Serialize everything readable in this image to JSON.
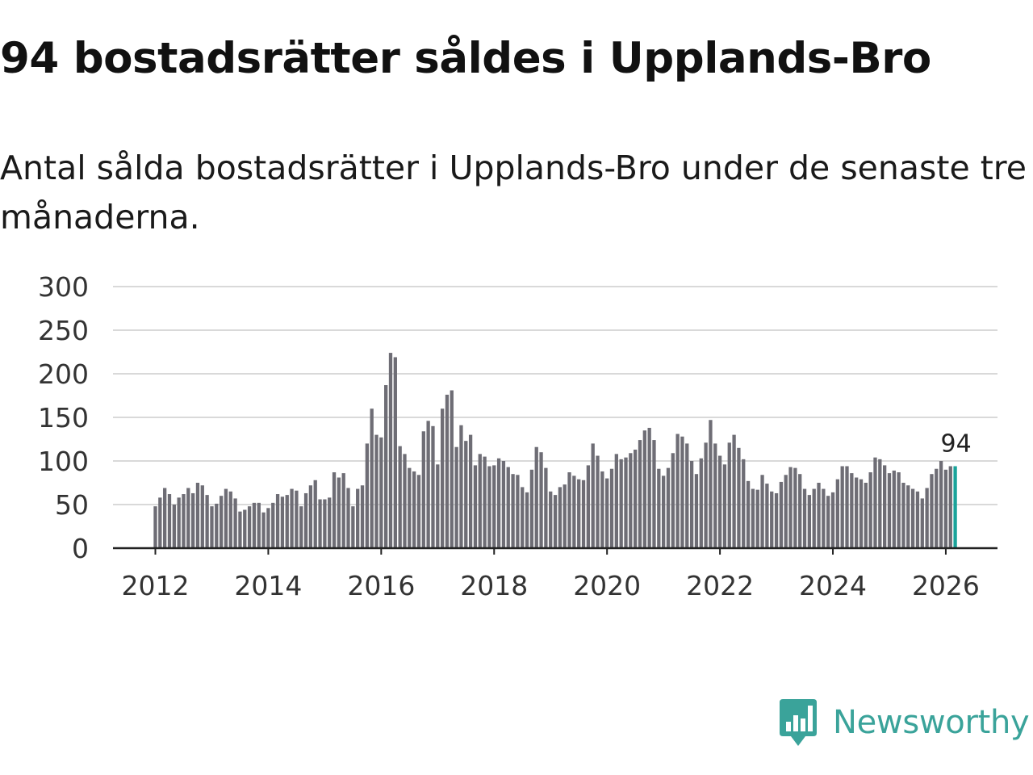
{
  "title": "94 bostadsrätter såldes i Upplands-Bro",
  "subtitle": "Antal sålda bostadsrätter i Upplands-Bro under de senaste tre månaderna.",
  "brand": {
    "name": "Newsworthy",
    "icon": "newsworthy-logo-icon",
    "color": "#3aa39a"
  },
  "colors": {
    "bar": "#6e6d75",
    "highlight": "#1aa39a",
    "grid": "#d9d9d9",
    "axis": "#222222"
  },
  "chart_data": {
    "type": "bar",
    "title": "94 bostadsrätter såldes i Upplands-Bro",
    "xlabel": "",
    "ylabel": "",
    "x_start": {
      "year": 2012,
      "month": 1
    },
    "x_ticks": [
      2012,
      2014,
      2016,
      2018,
      2020,
      2022,
      2024,
      2026
    ],
    "y_ticks": [
      0,
      50,
      100,
      150,
      200,
      250,
      300
    ],
    "ylim": [
      0,
      300
    ],
    "grid": true,
    "highlight_label": "94",
    "values": [
      48,
      58,
      69,
      62,
      50,
      58,
      62,
      69,
      63,
      75,
      72,
      61,
      48,
      51,
      60,
      68,
      65,
      57,
      42,
      44,
      48,
      52,
      52,
      41,
      46,
      52,
      62,
      59,
      61,
      68,
      66,
      48,
      63,
      72,
      78,
      56,
      56,
      58,
      87,
      81,
      86,
      69,
      48,
      68,
      72,
      120,
      160,
      130,
      127,
      187,
      224,
      219,
      117,
      108,
      92,
      88,
      84,
      134,
      146,
      140,
      96,
      160,
      176,
      181,
      116,
      141,
      123,
      130,
      95,
      108,
      105,
      94,
      95,
      103,
      100,
      93,
      85,
      84,
      70,
      64,
      90,
      116,
      110,
      92,
      65,
      61,
      70,
      73,
      87,
      83,
      79,
      78,
      95,
      120,
      106,
      88,
      80,
      91,
      108,
      102,
      104,
      109,
      113,
      124,
      135,
      138,
      124,
      91,
      83,
      92,
      109,
      131,
      128,
      120,
      100,
      85,
      103,
      121,
      147,
      120,
      106,
      96,
      121,
      130,
      115,
      102,
      77,
      68,
      67,
      84,
      74,
      65,
      63,
      76,
      84,
      93,
      92,
      85,
      68,
      61,
      68,
      75,
      68,
      60,
      64,
      79,
      94,
      94,
      86,
      81,
      79,
      75,
      87,
      104,
      102,
      95,
      86,
      89,
      87,
      75,
      72,
      68,
      65,
      57,
      69,
      85,
      91,
      100,
      90,
      94,
      94
    ]
  }
}
